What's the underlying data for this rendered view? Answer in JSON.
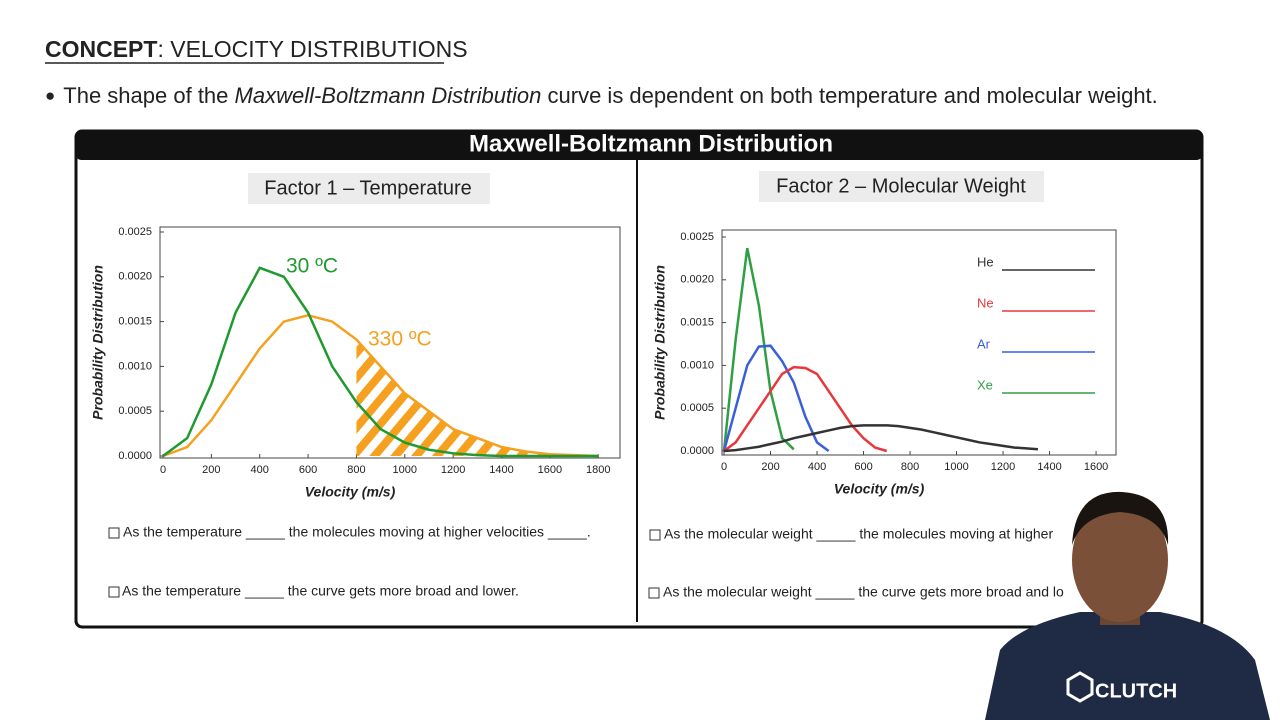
{
  "header": {
    "concept_label": "CONCEPT",
    "concept_title": ": VELOCITY DISTRIBUTIONS",
    "bullet_marker": "●",
    "bullet_pre": "The shape of the ",
    "bullet_em": "Maxwell-Boltzmann Distribution",
    "bullet_post": " curve is dependent on both temperature and molecular weight."
  },
  "panel": {
    "title": "Maxwell-Boltzmann Distribution",
    "factors": [
      {
        "title": "Factor 1 – Temperature",
        "statements": [
          "As the temperature _____ the molecules moving at higher velocities _____.",
          "As the temperature _____ the curve gets more broad and lower."
        ]
      },
      {
        "title": "Factor 2 – Molecular Weight",
        "statements": [
          "As the molecular weight _____ the molecules moving at higher",
          "As the molecular weight _____ the curve gets more broad and lo"
        ]
      }
    ]
  },
  "chart_data": [
    {
      "type": "line",
      "x_label": "Velocity (m/s)",
      "y_label": "Probability Distribution",
      "x": [
        0,
        100,
        200,
        300,
        400,
        500,
        600,
        700,
        800,
        900,
        1000,
        1100,
        1200,
        1300,
        1400,
        1500,
        1600,
        1700,
        1800
      ],
      "series": [
        {
          "name": "30 ºC",
          "color": "#1f9a2e",
          "values": [
            0,
            0.0002,
            0.0008,
            0.0016,
            0.0021,
            0.002,
            0.0016,
            0.001,
            0.0006,
            0.0003,
            0.00015,
            7e-05,
            3e-05,
            1e-05,
            0,
            0,
            0,
            0,
            0
          ]
        },
        {
          "name": "330 ºC",
          "color": "#f5a01f",
          "values": [
            0,
            0.0001,
            0.0004,
            0.0008,
            0.0012,
            0.0015,
            0.00157,
            0.0015,
            0.0013,
            0.001,
            0.0007,
            0.0005,
            0.0003,
            0.0002,
            0.0001,
            5e-05,
            2e-05,
            1e-05,
            0
          ]
        }
      ],
      "hatched_from": 800,
      "xlim": [
        0,
        1890
      ],
      "ylim": [
        0,
        0.0025
      ],
      "xticks": [
        0,
        200,
        400,
        600,
        800,
        1000,
        1200,
        1400,
        1600,
        1800
      ],
      "yticks": [
        {
          "value": 0,
          "label": "0.0000"
        },
        0.0005,
        {
          "value": 0.001,
          "label": "0.0010"
        },
        0.0015,
        {
          "value": 0.002,
          "label": "0.0020"
        },
        0.0025
      ]
    },
    {
      "type": "line",
      "x_label": "Velocity (m/s)",
      "y_label": "Probability Distribution",
      "x": [
        0,
        50,
        100,
        150,
        200,
        250,
        300,
        350,
        400,
        450,
        500,
        550,
        600,
        650,
        700,
        750,
        800,
        850,
        900,
        950,
        1000,
        1050,
        1100,
        1150,
        1200,
        1250,
        1300,
        1350
      ],
      "series": [
        {
          "name": "He",
          "color": "#333333",
          "values": [
            0,
            1e-05,
            3e-05,
            5e-05,
            8e-05,
            0.00011,
            0.00015,
            0.00018,
            0.00021,
            0.00024,
            0.00027,
            0.00029,
            0.0003,
            0.0003,
            0.0003,
            0.00029,
            0.00027,
            0.00025,
            0.00022,
            0.00019,
            0.00016,
            0.00013,
            0.0001,
            8e-05,
            6e-05,
            4e-05,
            3e-05,
            2e-05
          ]
        },
        {
          "name": "Ne",
          "color": "#e8383d",
          "values": [
            0,
            0.0001,
            0.0003,
            0.0005,
            0.0007,
            0.0009,
            0.00098,
            0.00097,
            0.0009,
            0.0007,
            0.0005,
            0.0003,
            0.00015,
            4e-05,
            0,
            null,
            null,
            null,
            null,
            null,
            null,
            null,
            null,
            null,
            null,
            null,
            null,
            null
          ]
        },
        {
          "name": "Ar",
          "color": "#3a5fd9",
          "values": [
            0,
            0.0005,
            0.001,
            0.00122,
            0.00123,
            0.00105,
            0.0008,
            0.0004,
            0.0001,
            0,
            null,
            null,
            null,
            null,
            null,
            null,
            null,
            null,
            null,
            null,
            null,
            null,
            null,
            null,
            null,
            null,
            null,
            null
          ]
        },
        {
          "name": "Xe",
          "color": "#2ea043",
          "values": [
            0,
            0.0013,
            0.00237,
            0.0017,
            0.0007,
            0.00015,
            2e-05,
            null,
            null,
            null,
            null,
            null,
            null,
            null,
            null,
            null,
            null,
            null,
            null,
            null,
            null,
            null,
            null,
            null,
            null,
            null,
            null,
            null
          ]
        }
      ],
      "legend": "upper right",
      "xlim": [
        0,
        1690
      ],
      "ylim": [
        0,
        0.0025
      ],
      "xticks": [
        0,
        200,
        400,
        600,
        800,
        1000,
        1200,
        1400,
        1600
      ],
      "yticks": [
        {
          "value": 0,
          "label": "0.0000"
        },
        0.0005,
        {
          "value": 0.001,
          "label": "0.0010"
        },
        0.0015,
        {
          "value": 0.002,
          "label": "0.0020"
        },
        0.0025
      ]
    }
  ],
  "logo": "CLUTCH"
}
